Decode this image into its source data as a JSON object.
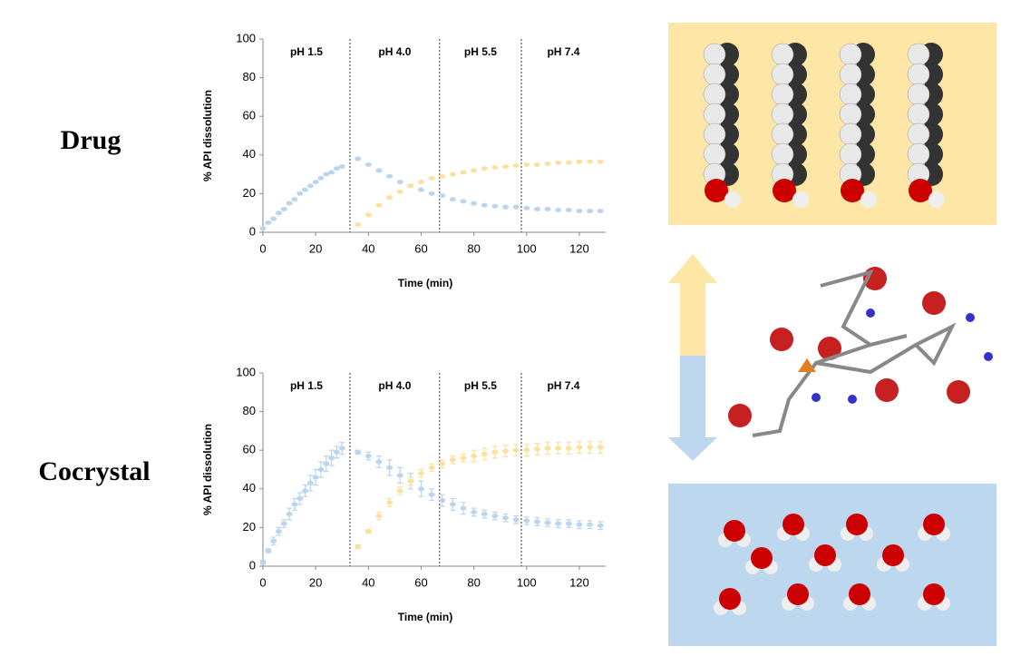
{
  "panel_labels": [
    "Drug",
    "Cocrystal"
  ],
  "chart_data": [
    {
      "type": "scatter",
      "xlabel": "Time (min)",
      "ylabel": "% API dissolution",
      "xlim": [
        0,
        130
      ],
      "ylim": [
        0,
        100
      ],
      "xticks": [
        0,
        20,
        40,
        60,
        80,
        100,
        120
      ],
      "yticks": [
        0,
        20,
        40,
        60,
        80,
        100
      ],
      "phase_labels": [
        "pH 1.5",
        "pH 4.0",
        "pH 5.5",
        "pH 7.4"
      ],
      "phase_boundaries": [
        33,
        67,
        98
      ],
      "x": [
        0,
        2,
        4,
        6,
        8,
        10,
        12,
        14,
        16,
        18,
        20,
        22,
        24,
        26,
        28,
        30,
        33,
        36,
        40,
        44,
        48,
        52,
        56,
        60,
        64,
        68,
        72,
        76,
        80,
        84,
        88,
        92,
        96,
        100,
        104,
        108,
        112,
        116,
        120,
        124,
        128
      ],
      "series": [
        {
          "color": "#bcd5ee",
          "values": [
            2,
            5,
            7,
            10,
            12,
            15,
            17,
            20,
            22,
            24,
            26,
            28,
            30,
            31,
            33,
            34,
            null,
            38,
            35,
            32,
            29,
            26,
            24,
            22,
            20,
            19,
            17,
            16,
            15,
            14,
            13.5,
            13,
            13,
            12.5,
            12,
            12,
            11.5,
            11.5,
            11,
            11,
            11
          ]
        },
        {
          "color": "#fbe1a0",
          "values": [
            null,
            null,
            null,
            null,
            null,
            null,
            null,
            null,
            null,
            null,
            null,
            null,
            null,
            null,
            null,
            null,
            null,
            4,
            9,
            14,
            18,
            21,
            24,
            26,
            28,
            29,
            30,
            31,
            32,
            33,
            33.5,
            34,
            34.5,
            35,
            35,
            35.5,
            36,
            36,
            36.5,
            36.5,
            36.5
          ]
        }
      ]
    },
    {
      "type": "scatter",
      "xlabel": "Time (min)",
      "ylabel": "% API dissolution",
      "xlim": [
        0,
        130
      ],
      "ylim": [
        0,
        100
      ],
      "xticks": [
        0,
        20,
        40,
        60,
        80,
        100,
        120
      ],
      "yticks": [
        0,
        20,
        40,
        60,
        80,
        100
      ],
      "phase_labels": [
        "pH 1.5",
        "pH 4.0",
        "pH 5.5",
        "pH 7.4"
      ],
      "phase_boundaries": [
        33,
        67,
        98
      ],
      "x": [
        0,
        2,
        4,
        6,
        8,
        10,
        12,
        14,
        16,
        18,
        20,
        22,
        24,
        26,
        28,
        30,
        33,
        36,
        40,
        44,
        48,
        52,
        56,
        60,
        64,
        68,
        72,
        76,
        80,
        84,
        88,
        92,
        96,
        100,
        104,
        108,
        112,
        116,
        120,
        124,
        128
      ],
      "series": [
        {
          "color": "#bcd5ee",
          "values": [
            2,
            8,
            13,
            18,
            22,
            27,
            32,
            35,
            39,
            43,
            46,
            50,
            53,
            56,
            59,
            61,
            null,
            59,
            57,
            54,
            51,
            47,
            44,
            40,
            37,
            34,
            32,
            30,
            28,
            27,
            26,
            25,
            24,
            23.5,
            23,
            22.5,
            22,
            22,
            21.5,
            21.5,
            21
          ],
          "errors": [
            1,
            1,
            2,
            2,
            2,
            3,
            3,
            3,
            3,
            4,
            4,
            4,
            4,
            4,
            3,
            3,
            null,
            1,
            2,
            3,
            4,
            4,
            4,
            4,
            3,
            3,
            3,
            3,
            2,
            2,
            2,
            2,
            2,
            2,
            2,
            2,
            2,
            2,
            2,
            2,
            2
          ]
        },
        {
          "color": "#fbe1a0",
          "values": [
            null,
            null,
            null,
            null,
            null,
            null,
            null,
            null,
            null,
            null,
            null,
            null,
            null,
            null,
            null,
            null,
            null,
            10,
            18,
            26,
            33,
            39,
            44,
            48,
            51,
            53,
            55,
            56,
            57,
            58,
            59,
            59.5,
            60,
            60,
            60.5,
            61,
            61,
            61,
            61.5,
            61.5,
            61.5
          ],
          "errors": [
            null,
            null,
            null,
            null,
            null,
            null,
            null,
            null,
            null,
            null,
            null,
            null,
            null,
            null,
            null,
            null,
            null,
            1,
            1,
            2,
            2,
            2,
            2,
            2,
            2,
            2,
            2,
            2,
            3,
            3,
            3,
            3,
            3,
            3,
            3,
            3,
            3,
            3,
            3,
            3,
            3
          ]
        }
      ]
    }
  ]
}
